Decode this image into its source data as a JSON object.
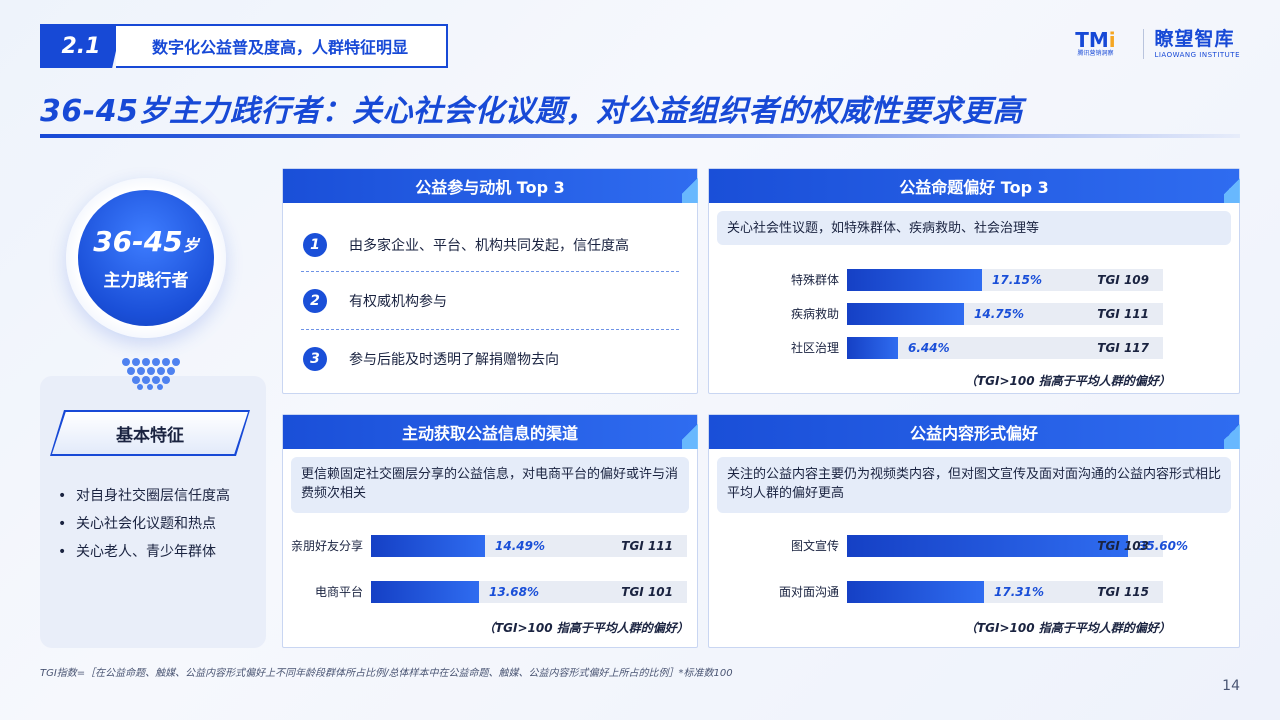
{
  "header": {
    "section_num": "2.1",
    "section_title": "数字化公益普及度高，人群特征明显",
    "main_title": "36-45岁主力践行者：关心社会化议题，对公益组织者的权威性要求更高",
    "logo_tmi": "TM",
    "logo_tmi_accent": "i",
    "logo_tmi_sub": "腾讯营销洞察",
    "logo_lw": "瞭望智库",
    "logo_lw_sub": "LIAOWANG INSTITUTE"
  },
  "persona": {
    "age": "36-45",
    "age_suffix": "岁",
    "role": "主力践行者"
  },
  "features": {
    "title": "基本特征",
    "items": [
      "对自身社交圈层信任度高",
      "关心社会化议题和热点",
      "关心老人、青少年群体"
    ]
  },
  "motives": {
    "title": "公益参与动机 Top 3",
    "items": [
      {
        "num": "1",
        "text": "由多家企业、平台、机构共同发起，信任度高"
      },
      {
        "num": "2",
        "text": "有权威机构参与"
      },
      {
        "num": "3",
        "text": "参与后能及时透明了解捐赠物去向"
      }
    ]
  },
  "topics": {
    "title": "公益命题偏好 Top 3",
    "desc": "关心社会性议题，如特殊群体、疾病救助、社会治理等",
    "note": "（TGI>100 指高于平均人群的偏好）"
  },
  "channels": {
    "title": "主动获取公益信息的渠道",
    "desc": "更信赖固定社交圈层分享的公益信息，对电商平台的偏好或许与消费频次相关",
    "note": "（TGI>100 指高于平均人群的偏好）"
  },
  "formats": {
    "title": "公益内容形式偏好",
    "desc": "关注的公益内容主要仍为视频类内容，但对图文宣传及面对面沟通的公益内容形式相比平均人群的偏好更高",
    "note": "（TGI>100 指高于平均人群的偏好）"
  },
  "chart_data": [
    {
      "type": "bar",
      "title": "公益命题偏好 Top 3",
      "categories": [
        "特殊群体",
        "疾病救助",
        "社区治理"
      ],
      "values": [
        17.15,
        14.75,
        6.44
      ],
      "labels": [
        "17.15%",
        "14.75%",
        "6.44%"
      ],
      "tgi": [
        "TGI  109",
        "TGI  111",
        "TGI  117"
      ]
    },
    {
      "type": "bar",
      "title": "主动获取公益信息的渠道",
      "categories": [
        "亲朋好友分享",
        "电商平台"
      ],
      "values": [
        14.49,
        13.68
      ],
      "labels": [
        "14.49%",
        "13.68%"
      ],
      "tgi": [
        "TGI  111",
        "TGI  101"
      ]
    },
    {
      "type": "bar",
      "title": "公益内容形式偏好",
      "categories": [
        "图文宣传",
        "面对面沟通"
      ],
      "values": [
        35.6,
        17.31
      ],
      "labels": [
        "35.60%",
        "17.31%"
      ],
      "tgi": [
        "TGI  103",
        "TGI  115"
      ]
    }
  ],
  "footnote": "TGI指数=［在公益命题、触媒、公益内容形式偏好上不同年龄段群体所占比例/总体样本中在公益命题、触媒、公益内容形式偏好上所占的比例］*标准数100",
  "page_number": "14",
  "colors": {
    "primary": "#1749d6",
    "accent": "#2f6cf0",
    "bar_track": "#e8ecf4",
    "panel": "#e5ecf9"
  }
}
